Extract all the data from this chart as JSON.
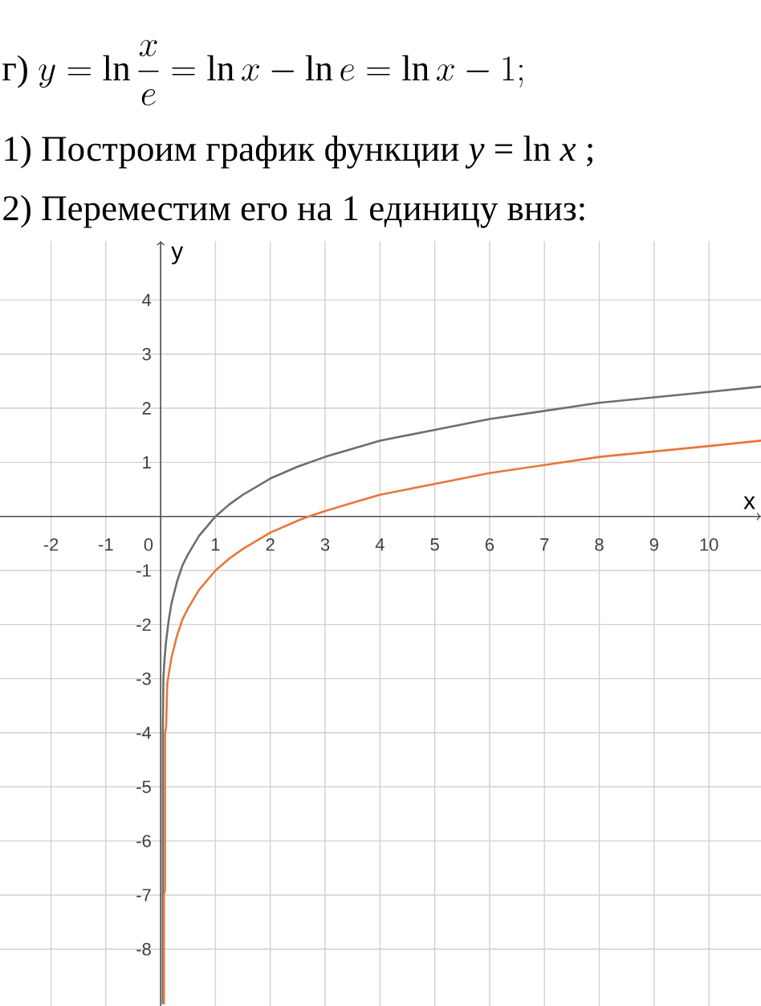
{
  "chart_data": {
    "type": "line",
    "title": "\\text{г) }y=\\ln\\frac{x}{e}=\\ln x-\\ln e=\\ln x-1;",
    "subtitle": "1) Построим график функции *y* = ln *x* ;",
    "annotations": [
      "2) Переместим его на 1 единицу вниз:"
    ],
    "xlabel": "x",
    "ylabel": "y",
    "series": [
      {
        "color": "#6e6e6e",
        "x": [
          0.04,
          0.04,
          0.05,
          0.07,
          0.1,
          0.15,
          0.2,
          0.3,
          0.4,
          0.5,
          0.7,
          1,
          1.25,
          1.5,
          2,
          2.5,
          3,
          3.5,
          4,
          5,
          6,
          7,
          8,
          9,
          10,
          10.95
        ],
        "values": [
          -9.0,
          -4.0,
          -3.0,
          -2.65,
          -2.3,
          -1.9,
          -1.6,
          -1.2,
          -0.9,
          -0.7,
          -0.36,
          0,
          0.22,
          0.4,
          0.7,
          0.92,
          1.1,
          1.25,
          1.4,
          1.6,
          1.8,
          1.95,
          2.1,
          2.2,
          2.3,
          2.4
        ]
      },
      {
        "color": "#e8773a",
        "x": [
          0.06,
          0.06,
          0.08,
          0.08,
          0.1,
          0.12,
          0.15,
          0.2,
          0.3,
          0.4,
          0.5,
          0.7,
          1,
          1.25,
          1.5,
          2,
          2.5,
          2.7,
          3,
          3.5,
          4,
          5,
          6,
          7,
          8,
          9,
          10,
          10.95
        ],
        "values": [
          -9.0,
          -7.0,
          -6.9,
          -4.0,
          -3.9,
          -3.1,
          -2.9,
          -2.6,
          -2.2,
          -1.9,
          -1.7,
          -1.36,
          -1,
          -0.78,
          -0.6,
          -0.3,
          -0.08,
          0,
          0.1,
          0.25,
          0.4,
          0.6,
          0.8,
          0.95,
          1.1,
          1.2,
          1.3,
          1.4
        ]
      }
    ],
    "xlim": [
      -2.93,
      10.95
    ],
    "ylim": [
      -9.05,
      5.09
    ],
    "xticks": [
      -2,
      -1,
      0,
      1,
      2,
      3,
      4,
      5,
      6,
      7,
      8,
      9,
      10
    ],
    "yticks": [
      -8,
      -7,
      -6,
      -5,
      -4,
      -3,
      -2,
      -1,
      1,
      2,
      3,
      4
    ],
    "grid": true,
    "marker": "none",
    "line_style": "solid"
  }
}
